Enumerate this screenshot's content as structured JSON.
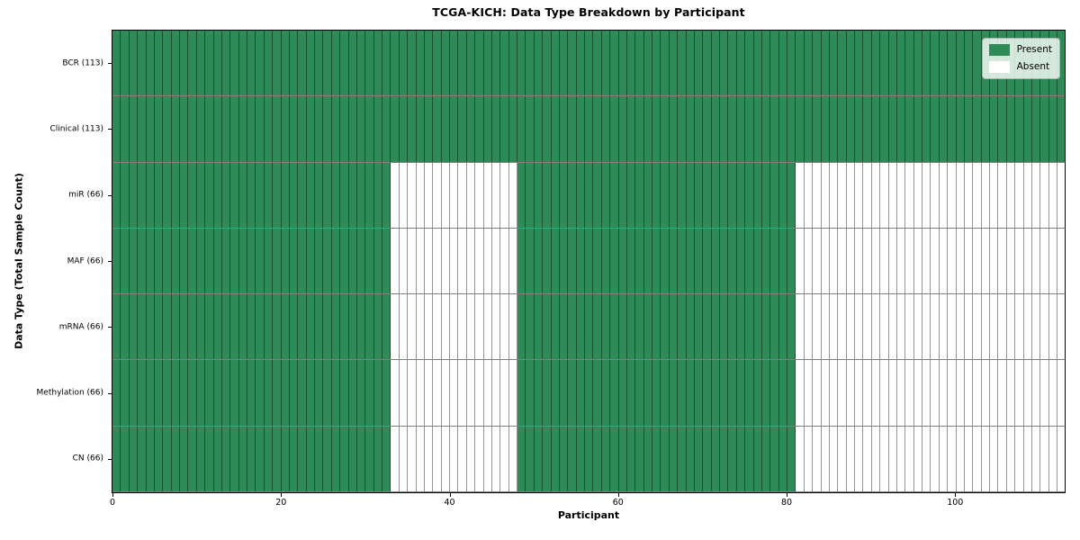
{
  "chart_data": {
    "type": "heatmap",
    "title": "TCGA-KICH: Data Type Breakdown by Participant",
    "xlabel": "Participant",
    "ylabel": "Data Type (Total Sample Count)",
    "xlim": [
      0,
      113
    ],
    "n_participants": 113,
    "x_ticks": [
      0,
      20,
      40,
      60,
      80,
      100
    ],
    "grid": false,
    "legend_position": "upper right",
    "legend": [
      {
        "label": "Present",
        "color": "#2e8b57"
      },
      {
        "label": "Absent",
        "color": "#ffffff"
      }
    ],
    "colors": {
      "present": "#2e8b57",
      "absent": "#ffffff",
      "cell_edge": "rgba(0,0,0,0.42)",
      "plot_border": "#000000"
    },
    "rows": [
      {
        "label": "BCR (113)",
        "total": 113,
        "present_ranges": [
          [
            0,
            113
          ]
        ]
      },
      {
        "label": "Clinical (113)",
        "total": 113,
        "present_ranges": [
          [
            0,
            113
          ]
        ]
      },
      {
        "label": "miR (66)",
        "total": 66,
        "present_ranges": [
          [
            0,
            33
          ],
          [
            48,
            81
          ]
        ]
      },
      {
        "label": "MAF (66)",
        "total": 66,
        "present_ranges": [
          [
            0,
            33
          ],
          [
            48,
            81
          ]
        ]
      },
      {
        "label": "mRNA (66)",
        "total": 66,
        "present_ranges": [
          [
            0,
            33
          ],
          [
            48,
            81
          ]
        ]
      },
      {
        "label": "Methylation (66)",
        "total": 66,
        "present_ranges": [
          [
            0,
            33
          ],
          [
            48,
            81
          ]
        ]
      },
      {
        "label": "CN (66)",
        "total": 66,
        "present_ranges": [
          [
            0,
            33
          ],
          [
            48,
            81
          ]
        ]
      }
    ]
  }
}
